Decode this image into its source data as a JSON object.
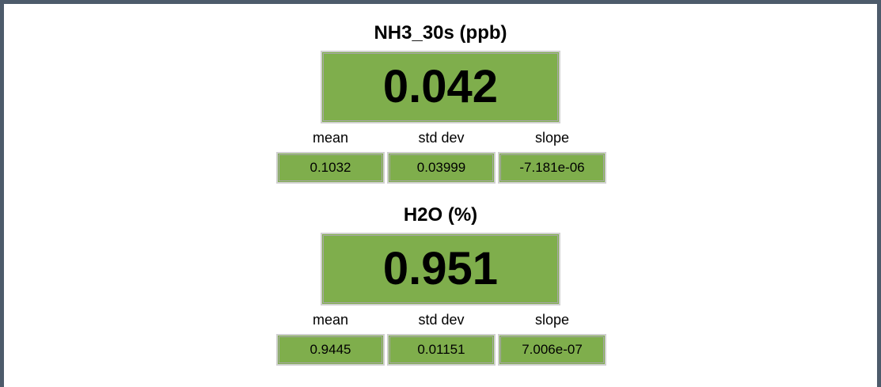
{
  "panels": [
    {
      "title": "NH3_30s (ppb)",
      "value": "0.042",
      "stats": [
        {
          "label": "mean",
          "value": "0.1032"
        },
        {
          "label": "std dev",
          "value": "0.03999"
        },
        {
          "label": "slope",
          "value": "-7.181e-06"
        }
      ]
    },
    {
      "title": "H2O (%)",
      "value": "0.951",
      "stats": [
        {
          "label": "mean",
          "value": "0.9445"
        },
        {
          "label": "std dev",
          "value": "0.01151"
        },
        {
          "label": "slope",
          "value": "7.006e-07"
        }
      ]
    }
  ]
}
